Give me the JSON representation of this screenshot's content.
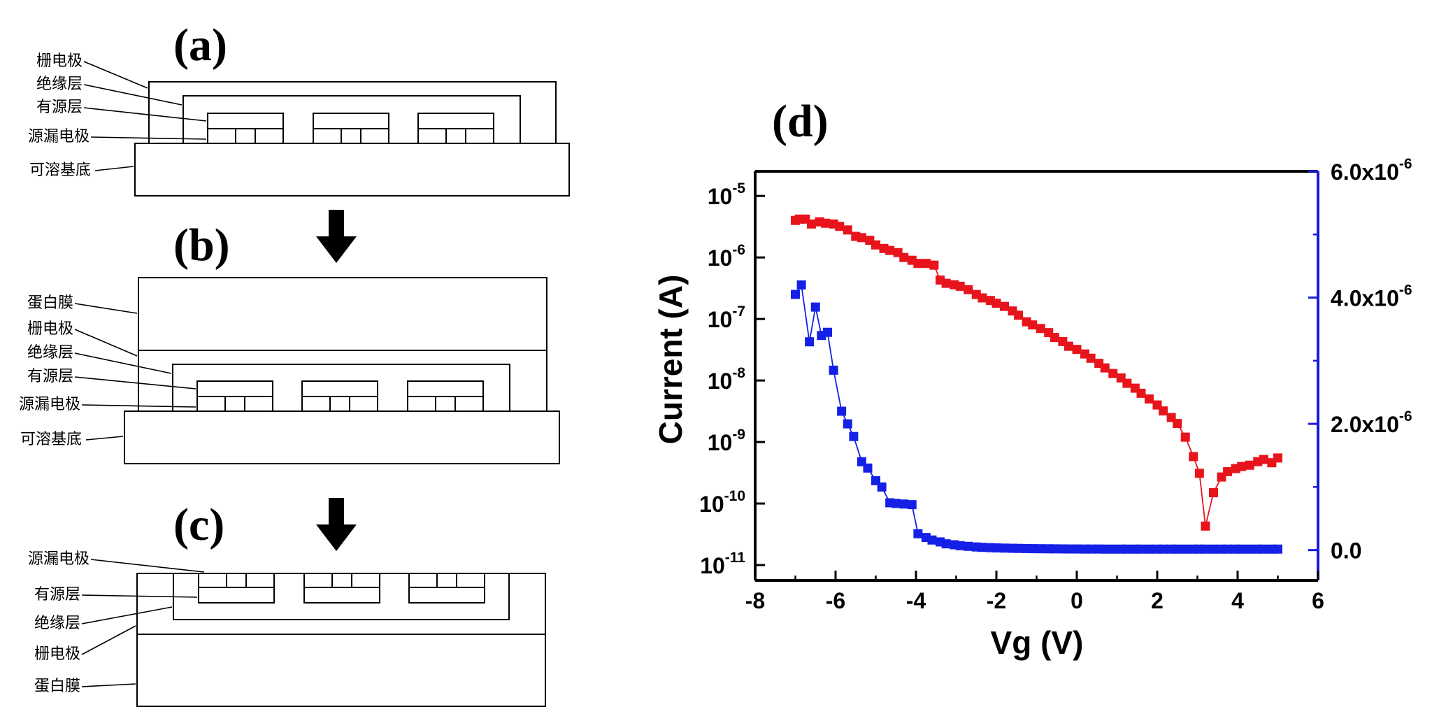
{
  "panels": {
    "a": {
      "label": "(a)",
      "layers": [
        "栅电极",
        "绝缘层",
        "有源层",
        "源漏电极",
        "可溶基底"
      ]
    },
    "b": {
      "label": "(b)",
      "layers": [
        "蛋白膜",
        "栅电极",
        "绝缘层",
        "有源层",
        "源漏电极",
        "可溶基底"
      ]
    },
    "c": {
      "label": "(c)",
      "layers": [
        "源漏电极",
        "有源层",
        "绝缘层",
        "栅电极",
        "蛋白膜"
      ]
    }
  },
  "chart_data": {
    "panel_label": "(d)",
    "type": "scatter",
    "xlabel": "Vg (V)",
    "ylabel": "Current (A)",
    "xlim": [
      -8,
      6
    ],
    "xticks": [
      -8,
      -6,
      -4,
      -2,
      0,
      2,
      4,
      6
    ],
    "y_left": {
      "scale": "log",
      "ylim_exp": [
        -11.25,
        -4.6
      ],
      "ticks": [
        {
          "base": "10",
          "exp": "-5"
        },
        {
          "base": "10",
          "exp": "-6"
        },
        {
          "base": "10",
          "exp": "-7"
        },
        {
          "base": "10",
          "exp": "-8"
        },
        {
          "base": "10",
          "exp": "-9"
        },
        {
          "base": "10",
          "exp": "-10"
        },
        {
          "base": "10",
          "exp": "-11"
        }
      ]
    },
    "y_right": {
      "scale": "linear",
      "ylim": [
        -4.8e-07,
        6e-06
      ],
      "ticks": [
        {
          "value": 0,
          "label": "0.0"
        },
        {
          "value": 2e-06,
          "base": "2.0x10",
          "exp": "-6"
        },
        {
          "value": 4e-06,
          "base": "4.0x10",
          "exp": "-6"
        },
        {
          "value": 6e-06,
          "base": "6.0x10",
          "exp": "-6"
        }
      ]
    },
    "series": [
      {
        "axis": "left-log",
        "color": "#e8141c",
        "x": [
          -7.0,
          -6.9,
          -6.75,
          -6.6,
          -6.4,
          -6.25,
          -6.05,
          -5.9,
          -5.7,
          -5.5,
          -5.35,
          -5.15,
          -5.0,
          -4.8,
          -4.65,
          -4.45,
          -4.3,
          -4.1,
          -3.95,
          -3.75,
          -3.55,
          -3.4,
          -3.25,
          -3.05,
          -2.9,
          -2.7,
          -2.5,
          -2.35,
          -2.15,
          -2.0,
          -1.8,
          -1.6,
          -1.45,
          -1.25,
          -1.1,
          -0.9,
          -0.7,
          -0.55,
          -0.35,
          -0.2,
          0.0,
          0.2,
          0.35,
          0.55,
          0.7,
          0.9,
          1.1,
          1.25,
          1.45,
          1.6,
          1.8,
          2.0,
          2.15,
          2.35,
          2.5,
          2.7,
          2.9,
          3.05,
          3.2,
          3.4,
          3.6,
          3.75,
          3.95,
          4.1,
          4.3,
          4.5,
          4.65,
          4.85,
          5.0
        ],
        "y": [
          4e-06,
          4.2e-06,
          4.2e-06,
          3.5e-06,
          3.8e-06,
          3.6e-06,
          3.5e-06,
          3.2e-06,
          2.8e-06,
          2.2e-06,
          2.1e-06,
          1.9e-06,
          1.6e-06,
          1.4e-06,
          1.3e-06,
          1.2e-06,
          1e-06,
          9e-07,
          8e-07,
          8e-07,
          7.5e-07,
          4.3e-07,
          3.8e-07,
          3.6e-07,
          3.4e-07,
          3e-07,
          2.5e-07,
          2.2e-07,
          2e-07,
          1.8e-07,
          1.6e-07,
          1.35e-07,
          1.15e-07,
          9e-08,
          8e-08,
          7e-08,
          6e-08,
          5e-08,
          4.3e-08,
          3.6e-08,
          3.2e-08,
          2.7e-08,
          2.3e-08,
          1.9e-08,
          1.6e-08,
          1.3e-08,
          1.1e-08,
          9e-09,
          7.5e-09,
          6.2e-09,
          5e-09,
          4e-09,
          3.2e-09,
          2.5e-09,
          2e-09,
          1.2e-09,
          5.8e-10,
          3.1e-10,
          4.3e-11,
          1.5e-10,
          2.7e-10,
          3.3e-10,
          3.7e-10,
          4e-10,
          4.2e-10,
          4.8e-10,
          5.2e-10,
          4.6e-10,
          5.5e-10
        ]
      },
      {
        "axis": "right-linear",
        "color": "#1420e6",
        "x": [
          -7.0,
          -6.85,
          -6.65,
          -6.5,
          -6.35,
          -6.2,
          -6.05,
          -5.85,
          -5.7,
          -5.55,
          -5.35,
          -5.2,
          -5.0,
          -4.85,
          -4.65,
          -4.5,
          -4.3,
          -4.1,
          -3.95,
          -3.75,
          -3.6,
          -3.4,
          -3.25,
          -3.05,
          -2.9,
          -2.7,
          -2.5,
          -2.35,
          -2.15,
          -2.0,
          -1.8,
          -1.6,
          -1.45,
          -1.25,
          -1.1,
          -0.9,
          -0.7,
          -0.55,
          -0.35,
          -0.2,
          0.0,
          0.2,
          0.35,
          0.55,
          0.7,
          0.9,
          1.1,
          1.25,
          1.45,
          1.6,
          1.8,
          2.0,
          2.15,
          2.35,
          2.5,
          2.7,
          2.9,
          3.05,
          3.2,
          3.4,
          3.6,
          3.75,
          3.95,
          4.1,
          4.3,
          4.5,
          4.65,
          4.85,
          5.0
        ],
        "y": [
          4.05e-06,
          4.2e-06,
          3.3e-06,
          3.85e-06,
          3.4e-06,
          3.45e-06,
          2.85e-06,
          2.2e-06,
          2e-06,
          1.8e-06,
          1.4e-06,
          1.3e-06,
          1.1e-06,
          1e-06,
          7.5e-07,
          7.4e-07,
          7.3e-07,
          7.2e-07,
          2.6e-07,
          2e-07,
          1.6e-07,
          1.3e-07,
          1e-07,
          8.5e-08,
          7e-08,
          6e-08,
          5e-08,
          4.4e-08,
          3.9e-08,
          3.5e-08,
          3.2e-08,
          2.9e-08,
          2.7e-08,
          2.5e-08,
          2.3e-08,
          2.2e-08,
          2.1e-08,
          2e-08,
          1.9e-08,
          1.8e-08,
          1.8e-08,
          1.7e-08,
          1.7e-08,
          1.7e-08,
          1.6e-08,
          1.6e-08,
          1.6e-08,
          1.6e-08,
          1.6e-08,
          1.6e-08,
          1.6e-08,
          1.6e-08,
          1.6e-08,
          1.6e-08,
          1.6e-08,
          1.6e-08,
          1.6e-08,
          1.6e-08,
          1.6e-08,
          1.6e-08,
          1.6e-08,
          1.6e-08,
          1.6e-08,
          1.6e-08,
          1.6e-08,
          1.6e-08,
          1.6e-08,
          1.6e-08,
          1.6e-08
        ]
      }
    ]
  }
}
